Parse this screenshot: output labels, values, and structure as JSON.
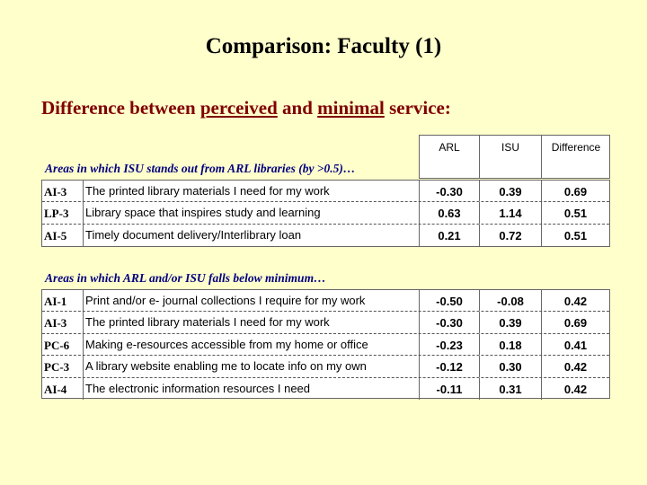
{
  "title": "Comparison: Faculty (1)",
  "subtitle": {
    "part1": "Difference between ",
    "u1": "perceived",
    "part2": " and ",
    "u2": "minimal",
    "part3": " service:"
  },
  "columns": {
    "arl": "ARL",
    "isu": "ISU",
    "diff": "Difference"
  },
  "section1": {
    "label": "Areas in which ISU stands out from ARL libraries (by >0.5)…",
    "rows": [
      {
        "code": "AI-3",
        "desc": "The printed library materials I need for my work",
        "arl": "-0.30",
        "isu": "0.39",
        "diff": "0.69"
      },
      {
        "code": "LP-3",
        "desc": "Library space that inspires study and learning",
        "arl": "0.63",
        "isu": "1.14",
        "diff": "0.51"
      },
      {
        "code": "AI-5",
        "desc": "Timely document delivery/Interlibrary loan",
        "arl": "0.21",
        "isu": "0.72",
        "diff": "0.51"
      }
    ]
  },
  "section2": {
    "label": "Areas in which ARL and/or ISU falls below minimum…",
    "rows": [
      {
        "code": "AI-1",
        "desc": "Print and/or e- journal collections I require for my work",
        "arl": "-0.50",
        "isu": "-0.08",
        "diff": "0.42"
      },
      {
        "code": "AI-3",
        "desc": "The printed library materials I need for my work",
        "arl": "-0.30",
        "isu": "0.39",
        "diff": "0.69"
      },
      {
        "code": "PC-6",
        "desc": "Making e-resources accessible from my home or office",
        "arl": "-0.23",
        "isu": "0.18",
        "diff": "0.41"
      },
      {
        "code": "PC-3",
        "desc": "A library website enabling me to locate info on my own",
        "arl": "-0.12",
        "isu": "0.30",
        "diff": "0.42"
      },
      {
        "code": "AI-4",
        "desc": "The electronic information resources I need",
        "arl": "-0.11",
        "isu": "0.31",
        "diff": "0.42"
      }
    ]
  }
}
